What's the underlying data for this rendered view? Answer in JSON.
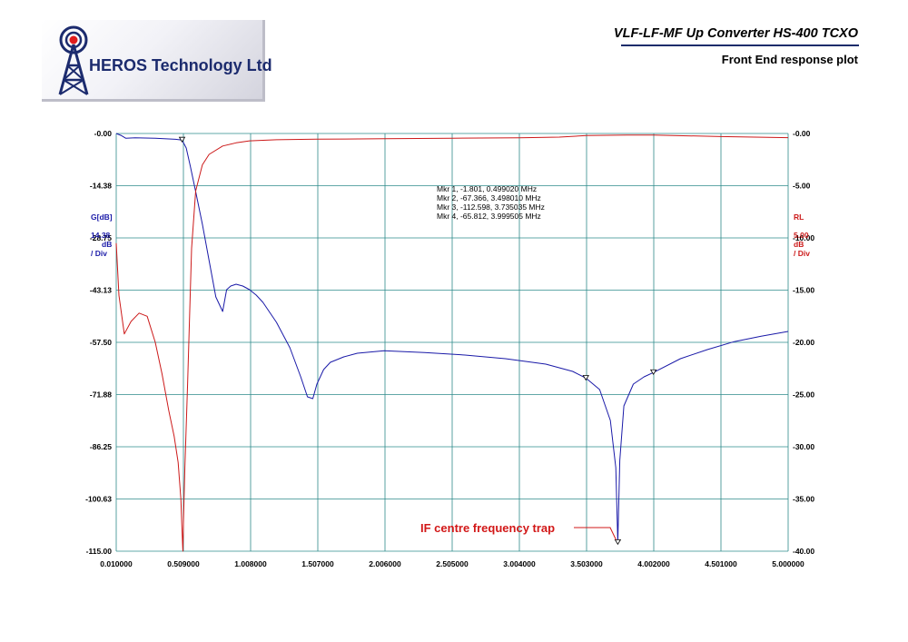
{
  "header": {
    "company": "HEROS Technology Ltd",
    "title": "VLF-LF-MF Up Converter HS-400 TCXO",
    "subtitle": "Front End response plot"
  },
  "colors": {
    "gain": "#1a1aa8",
    "return_loss": "#cc1a1a",
    "grid": "#2e8b8b",
    "logo_blue": "#1c2b6e"
  },
  "icons": {
    "logo": "radio-tower-icon"
  },
  "axes": {
    "left_title": "G[dB]",
    "left_scale": "14.38",
    "left_unit": "dB",
    "left_div": "/ Div",
    "right_title": "RL",
    "right_scale": "5.00",
    "right_unit": "dB",
    "right_div": "/ Div"
  },
  "markers": [
    "Mkr 1, -1.801, 0.499020 MHz",
    "Mkr 2, -67.366, 3.498010 MHz",
    "Mkr 3, -112.598, 3.735035 MHz",
    "Mkr 4, -65.812, 3.999505 MHz"
  ],
  "annotation": "IF centre frequency trap",
  "chart_data": {
    "type": "line",
    "x_ticks": [
      "0.010000",
      "0.509000",
      "1.008000",
      "1.507000",
      "2.006000",
      "2.505000",
      "3.004000",
      "3.503000",
      "4.002000",
      "4.501000",
      "5.000000"
    ],
    "y_left_ticks": [
      "-0.00",
      "-14.38",
      "-28.75",
      "-43.13",
      "-57.50",
      "-71.88",
      "-86.25",
      "-100.63",
      "-115.00"
    ],
    "y_right_ticks": [
      "-0.00",
      "-5.00",
      "-10.00",
      "-15.00",
      "-20.00",
      "-25.00",
      "-30.00",
      "-35.00",
      "-40.00"
    ],
    "xlim": [
      0.01,
      5.0
    ],
    "ylim_left": [
      -115,
      0
    ],
    "ylim_right": [
      -40,
      0
    ],
    "grid": true,
    "series": [
      {
        "name": "G[dB]",
        "axis": "left",
        "x": [
          0.01,
          0.05,
          0.08,
          0.15,
          0.3,
          0.45,
          0.499,
          0.53,
          0.56,
          0.6,
          0.65,
          0.7,
          0.75,
          0.8,
          0.83,
          0.86,
          0.9,
          0.95,
          1.0,
          1.05,
          1.1,
          1.2,
          1.3,
          1.38,
          1.43,
          1.47,
          1.5,
          1.55,
          1.6,
          1.7,
          1.8,
          2.0,
          2.3,
          2.6,
          2.9,
          3.2,
          3.4,
          3.5,
          3.6,
          3.68,
          3.72,
          3.735,
          3.75,
          3.78,
          3.85,
          3.93,
          4.0,
          4.2,
          4.4,
          4.6,
          4.8,
          5.0
        ],
        "y": [
          0,
          -0.6,
          -1.3,
          -1.2,
          -1.3,
          -1.6,
          -1.8,
          -4,
          -9,
          -16,
          -25,
          -35,
          -45,
          -49,
          -43,
          -42,
          -41.5,
          -42,
          -43,
          -44.5,
          -46.5,
          -52,
          -59,
          -67,
          -72.5,
          -73,
          -69,
          -65,
          -63,
          -61.5,
          -60.5,
          -59.8,
          -60.3,
          -61,
          -62,
          -63.5,
          -65.5,
          -67.4,
          -70.5,
          -79,
          -92,
          -112.6,
          -90,
          -75,
          -69,
          -67,
          -65.8,
          -62,
          -59.5,
          -57.3,
          -55.8,
          -54.5
        ]
      },
      {
        "name": "RL",
        "axis": "right",
        "x": [
          0.01,
          0.03,
          0.07,
          0.12,
          0.18,
          0.24,
          0.3,
          0.35,
          0.4,
          0.44,
          0.47,
          0.49,
          0.5,
          0.505,
          0.51,
          0.52,
          0.54,
          0.57,
          0.6,
          0.65,
          0.7,
          0.8,
          0.9,
          1.0,
          1.2,
          1.5,
          2.0,
          2.5,
          3.0,
          3.3,
          3.503,
          3.8,
          4.0,
          4.5,
          5.0
        ],
        "y": [
          -10.5,
          -15.5,
          -19.2,
          -18,
          -17.2,
          -17.5,
          -20,
          -23,
          -26.5,
          -29,
          -31.5,
          -35,
          -38.5,
          -40,
          -37,
          -32,
          -24,
          -11,
          -5.5,
          -3,
          -2,
          -1.2,
          -0.9,
          -0.7,
          -0.6,
          -0.55,
          -0.5,
          -0.45,
          -0.42,
          -0.35,
          -0.2,
          -0.15,
          -0.15,
          -0.3,
          -0.4
        ]
      }
    ],
    "marker_points": [
      {
        "label": "Mkr 1",
        "x": 0.49902,
        "y": -1.801
      },
      {
        "label": "Mkr 2",
        "x": 3.49801,
        "y": -67.366
      },
      {
        "label": "Mkr 3",
        "x": 3.735035,
        "y": -112.598
      },
      {
        "label": "Mkr 4",
        "x": 3.999505,
        "y": -65.812
      }
    ]
  }
}
